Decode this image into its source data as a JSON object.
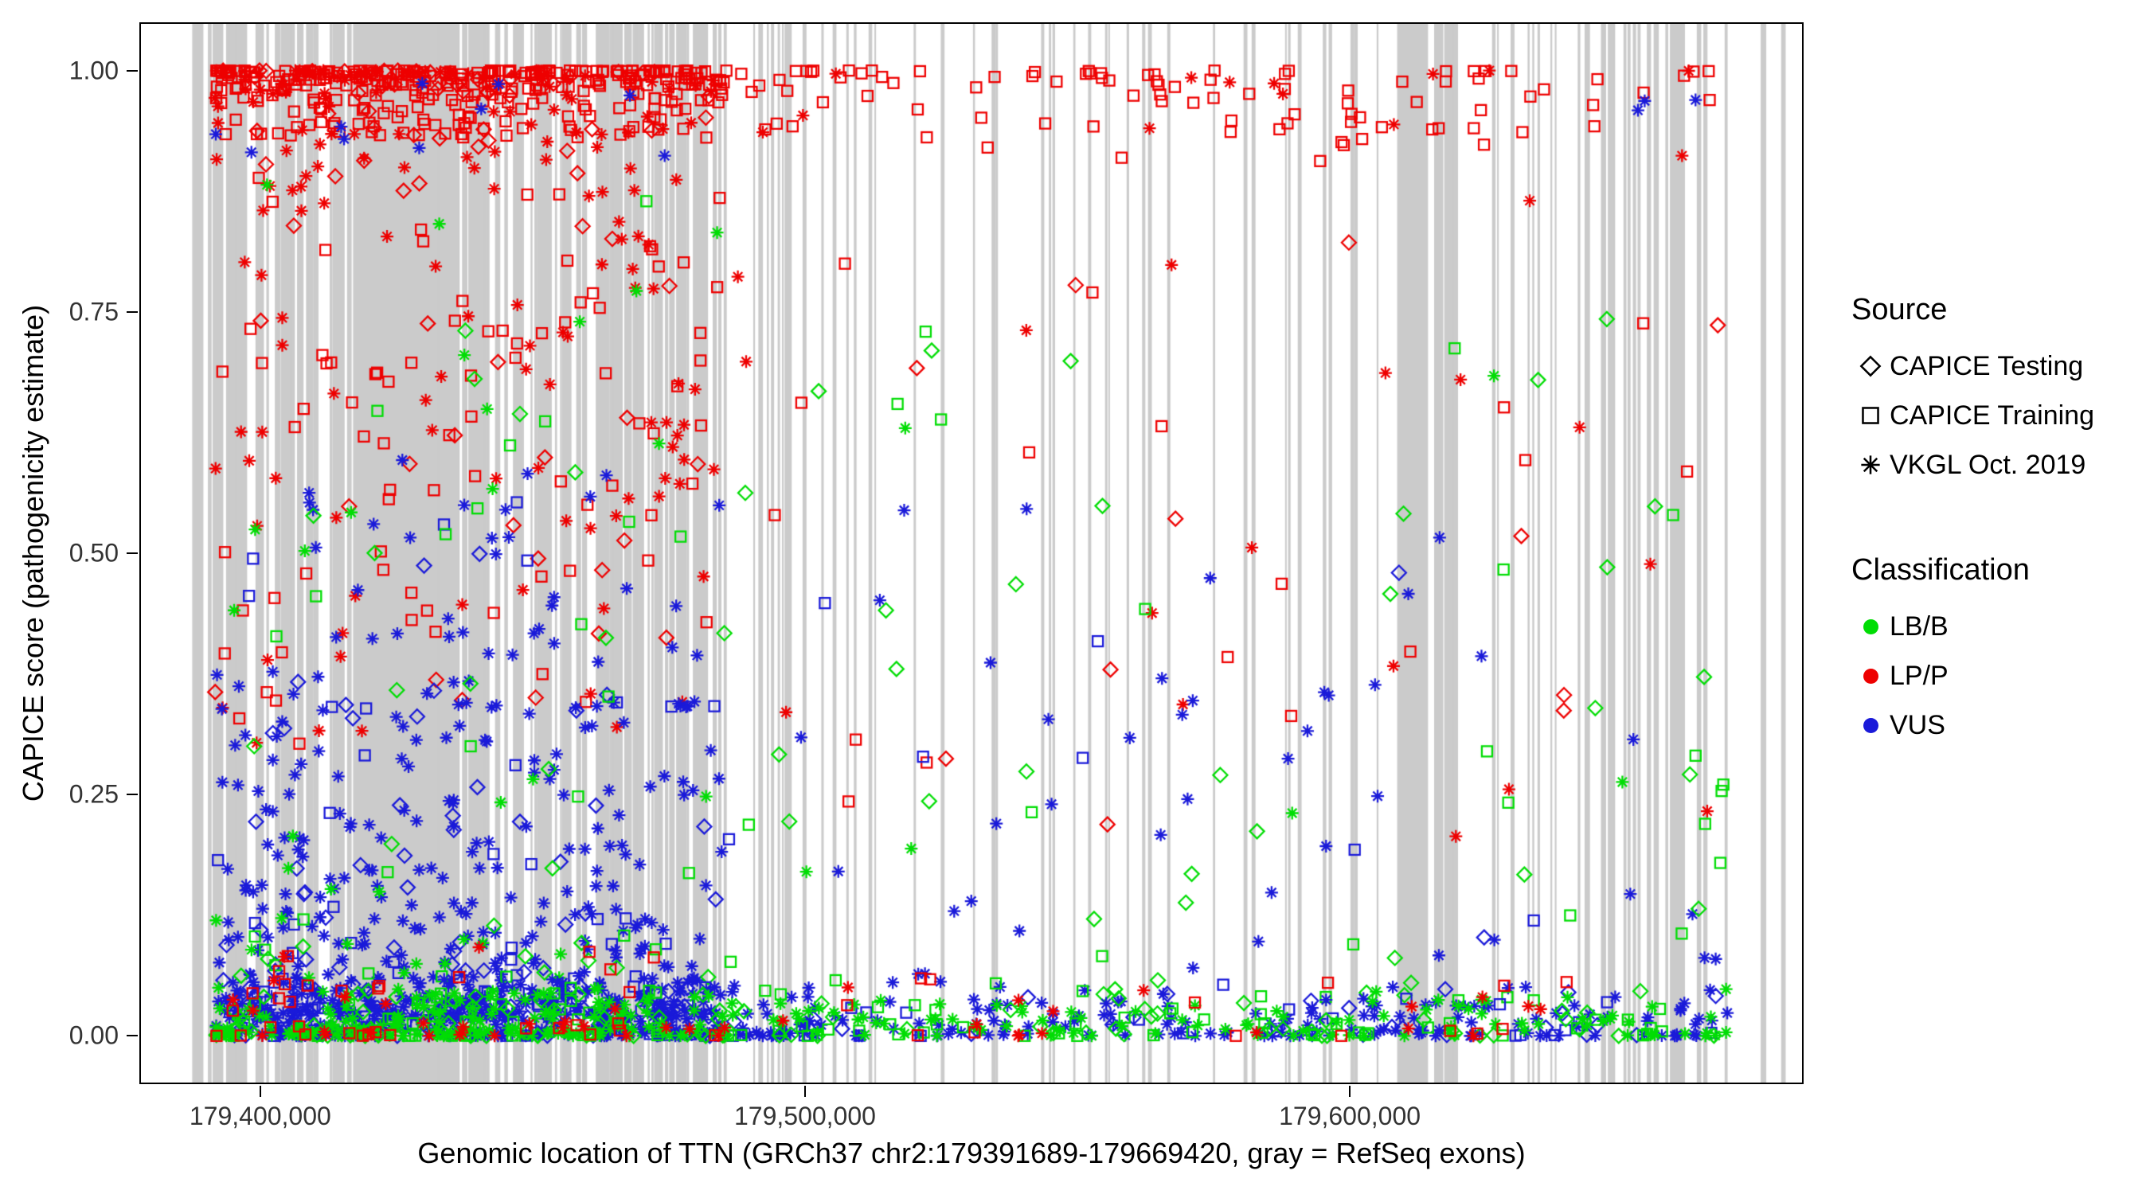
{
  "legend": {
    "source_title": "Source",
    "source_items": [
      {
        "label": "CAPICE Testing",
        "shape": "diamond"
      },
      {
        "label": "CAPICE Training",
        "shape": "square"
      },
      {
        "label": "VKGL Oct. 2019",
        "shape": "asterisk"
      }
    ],
    "classification_title": "Classification",
    "classification_items": [
      {
        "label": "LB/B",
        "color": "#00DD04"
      },
      {
        "label": "LP/P",
        "color": "#EE0000"
      },
      {
        "label": "VUS",
        "color": "#1A1AD9"
      }
    ]
  },
  "chart_data": {
    "type": "scatter",
    "title": "",
    "xlabel": "Genomic location of TTN (GRCh37 chr2:179391689-179669420, gray = RefSeq exons)",
    "ylabel": "CAPICE score (pathogenicity estimate)",
    "x_domain": [
      179391689,
      179669420
    ],
    "y_domain": [
      0,
      1
    ],
    "expand_frac": 0.05,
    "x_ticks": [
      {
        "value": 179400000,
        "label": "179,400,000"
      },
      {
        "value": 179500000,
        "label": "179,500,000"
      },
      {
        "value": 179600000,
        "label": "179,600,000"
      }
    ],
    "y_ticks": [
      {
        "value": 0.0,
        "label": "0.00"
      },
      {
        "value": 0.25,
        "label": "0.25"
      },
      {
        "value": 0.5,
        "label": "0.50"
      },
      {
        "value": 0.75,
        "label": "0.75"
      },
      {
        "value": 1.0,
        "label": "1.00"
      }
    ],
    "series_colors": {
      "LB/B": "#00DD04",
      "LP/P": "#EE0000",
      "VUS": "#1A1AD9"
    },
    "shape_legend": {
      "CAPICE Testing": "diamond",
      "CAPICE Training": "square",
      "VKGL Oct. 2019": "asterisk"
    },
    "seed": 1337,
    "exon_stripes": {
      "color": "#CBCBCB",
      "regions": [
        {
          "from": 0.03,
          "to": 0.355,
          "count": 130,
          "w": [
            2,
            7
          ]
        },
        {
          "from": 0.03,
          "to": 0.12,
          "count": 10,
          "w": [
            6,
            14
          ]
        },
        {
          "from": 0.125,
          "to": 0.21,
          "count": 14,
          "w": [
            12,
            30
          ]
        },
        {
          "from": 0.22,
          "to": 0.355,
          "count": 12,
          "w": [
            6,
            12
          ]
        },
        {
          "from": 0.362,
          "to": 0.4,
          "count": 10,
          "w": [
            2,
            6
          ]
        },
        {
          "from": 0.4,
          "to": 0.47,
          "count": 8,
          "w": [
            2,
            5
          ]
        },
        {
          "from": 0.47,
          "to": 0.6,
          "count": 14,
          "w": [
            2,
            5
          ]
        },
        {
          "from": 0.6,
          "to": 0.75,
          "count": 14,
          "w": [
            2,
            5
          ]
        },
        {
          "from": 0.755,
          "to": 0.79,
          "count": 8,
          "w": [
            10,
            20
          ]
        },
        {
          "from": 0.8,
          "to": 0.86,
          "count": 8,
          "w": [
            2,
            5
          ]
        },
        {
          "from": 0.862,
          "to": 0.925,
          "count": 18,
          "w": [
            3,
            9
          ]
        },
        {
          "from": 0.93,
          "to": 0.995,
          "count": 10,
          "w": [
            2,
            6
          ]
        }
      ]
    },
    "point_clusters": [
      {
        "count": 300,
        "x": [
          0.0,
          0.335
        ],
        "y": [
          0.93,
          1.0
        ],
        "bias": "high",
        "color": "LP/P",
        "shapes": {
          "square": 1
        }
      },
      {
        "count": 90,
        "x": [
          0.0,
          0.335
        ],
        "y": [
          0.86,
          1.0
        ],
        "bias": "high",
        "color": "LP/P",
        "shapes": {
          "asterisk": 1
        }
      },
      {
        "count": 45,
        "x": [
          0.0,
          0.335
        ],
        "y": [
          0.88,
          1.0
        ],
        "bias": "high",
        "color": "LP/P",
        "shapes": {
          "diamond": 1
        }
      },
      {
        "count": 120,
        "x": [
          0.0,
          0.335
        ],
        "y": [
          0.55,
          0.94
        ],
        "bias": "none",
        "color": "LP/P",
        "shapes": {
          "square": 0.5,
          "asterisk": 0.35,
          "diamond": 0.15
        }
      },
      {
        "count": 60,
        "x": [
          0.0,
          0.335
        ],
        "y": [
          0.3,
          0.58
        ],
        "bias": "none",
        "color": "LP/P",
        "shapes": {
          "square": 0.4,
          "asterisk": 0.4,
          "diamond": 0.2
        }
      },
      {
        "count": 420,
        "x": [
          0.0,
          0.335
        ],
        "y": [
          0.02,
          0.34
        ],
        "bias": "low",
        "color": "VUS",
        "shapes": {
          "asterisk": 0.75,
          "square": 0.13,
          "diamond": 0.12
        }
      },
      {
        "count": 70,
        "x": [
          0.0,
          0.335
        ],
        "y": [
          0.34,
          0.62
        ],
        "bias": "low",
        "color": "VUS",
        "shapes": {
          "asterisk": 0.7,
          "square": 0.15,
          "diamond": 0.15
        }
      },
      {
        "count": 10,
        "x": [
          0.0,
          0.335
        ],
        "y": [
          0.9,
          1.0
        ],
        "bias": "none",
        "color": "VUS",
        "shapes": {
          "asterisk": 1
        }
      },
      {
        "count": 80,
        "x": [
          0.0,
          0.335
        ],
        "y": [
          0.06,
          0.9
        ],
        "bias": "low",
        "color": "LB/B",
        "shapes": {
          "asterisk": 0.4,
          "square": 0.3,
          "diamond": 0.3
        }
      },
      {
        "count": 330,
        "x": [
          0.0,
          0.345
        ],
        "y": [
          0.0,
          0.06
        ],
        "bias": "low",
        "color": "VUS",
        "shapes": {
          "asterisk": 0.8,
          "square": 0.1,
          "diamond": 0.1
        }
      },
      {
        "count": 260,
        "x": [
          0.0,
          0.345
        ],
        "y": [
          0.0,
          0.05
        ],
        "bias": "low",
        "color": "LB/B",
        "shapes": {
          "asterisk": 0.6,
          "square": 0.2,
          "diamond": 0.2
        }
      },
      {
        "count": 60,
        "x": [
          0.0,
          0.345
        ],
        "y": [
          0.0,
          0.1
        ],
        "bias": "low",
        "color": "LP/P",
        "shapes": {
          "asterisk": 0.5,
          "square": 0.5
        }
      },
      {
        "count": 110,
        "x": [
          0.335,
          1.0
        ],
        "y": [
          0.9,
          1.0
        ],
        "bias": "high",
        "color": "LP/P",
        "shapes": {
          "square": 0.85,
          "asterisk": 0.15
        }
      },
      {
        "count": 45,
        "x": [
          0.335,
          1.0
        ],
        "y": [
          0.2,
          0.9
        ],
        "bias": "none",
        "color": "LP/P",
        "shapes": {
          "square": 0.4,
          "asterisk": 0.4,
          "diamond": 0.2
        }
      },
      {
        "count": 70,
        "x": [
          0.335,
          1.0
        ],
        "y": [
          0.04,
          0.55
        ],
        "bias": "low",
        "color": "VUS",
        "shapes": {
          "asterisk": 0.8,
          "diamond": 0.1,
          "square": 0.1
        }
      },
      {
        "count": 75,
        "x": [
          0.335,
          1.0
        ],
        "y": [
          0.04,
          0.75
        ],
        "bias": "low",
        "color": "LB/B",
        "shapes": {
          "diamond": 0.4,
          "square": 0.4,
          "asterisk": 0.2
        }
      },
      {
        "count": 200,
        "x": [
          0.345,
          1.0
        ],
        "y": [
          0.0,
          0.04
        ],
        "bias": "low",
        "color": "VUS",
        "shapes": {
          "asterisk": 0.8,
          "square": 0.1,
          "diamond": 0.1
        }
      },
      {
        "count": 170,
        "x": [
          0.345,
          1.0
        ],
        "y": [
          0.0,
          0.04
        ],
        "bias": "low",
        "color": "LB/B",
        "shapes": {
          "asterisk": 0.55,
          "square": 0.25,
          "diamond": 0.2
        }
      },
      {
        "count": 30,
        "x": [
          0.345,
          1.0
        ],
        "y": [
          0.0,
          0.08
        ],
        "bias": "low",
        "color": "LP/P",
        "shapes": {
          "asterisk": 0.5,
          "square": 0.5
        }
      },
      {
        "count": 3,
        "x": [
          0.93,
          1.0
        ],
        "y": [
          0.95,
          1.0
        ],
        "bias": "none",
        "color": "VUS",
        "shapes": {
          "asterisk": 1
        }
      }
    ]
  }
}
